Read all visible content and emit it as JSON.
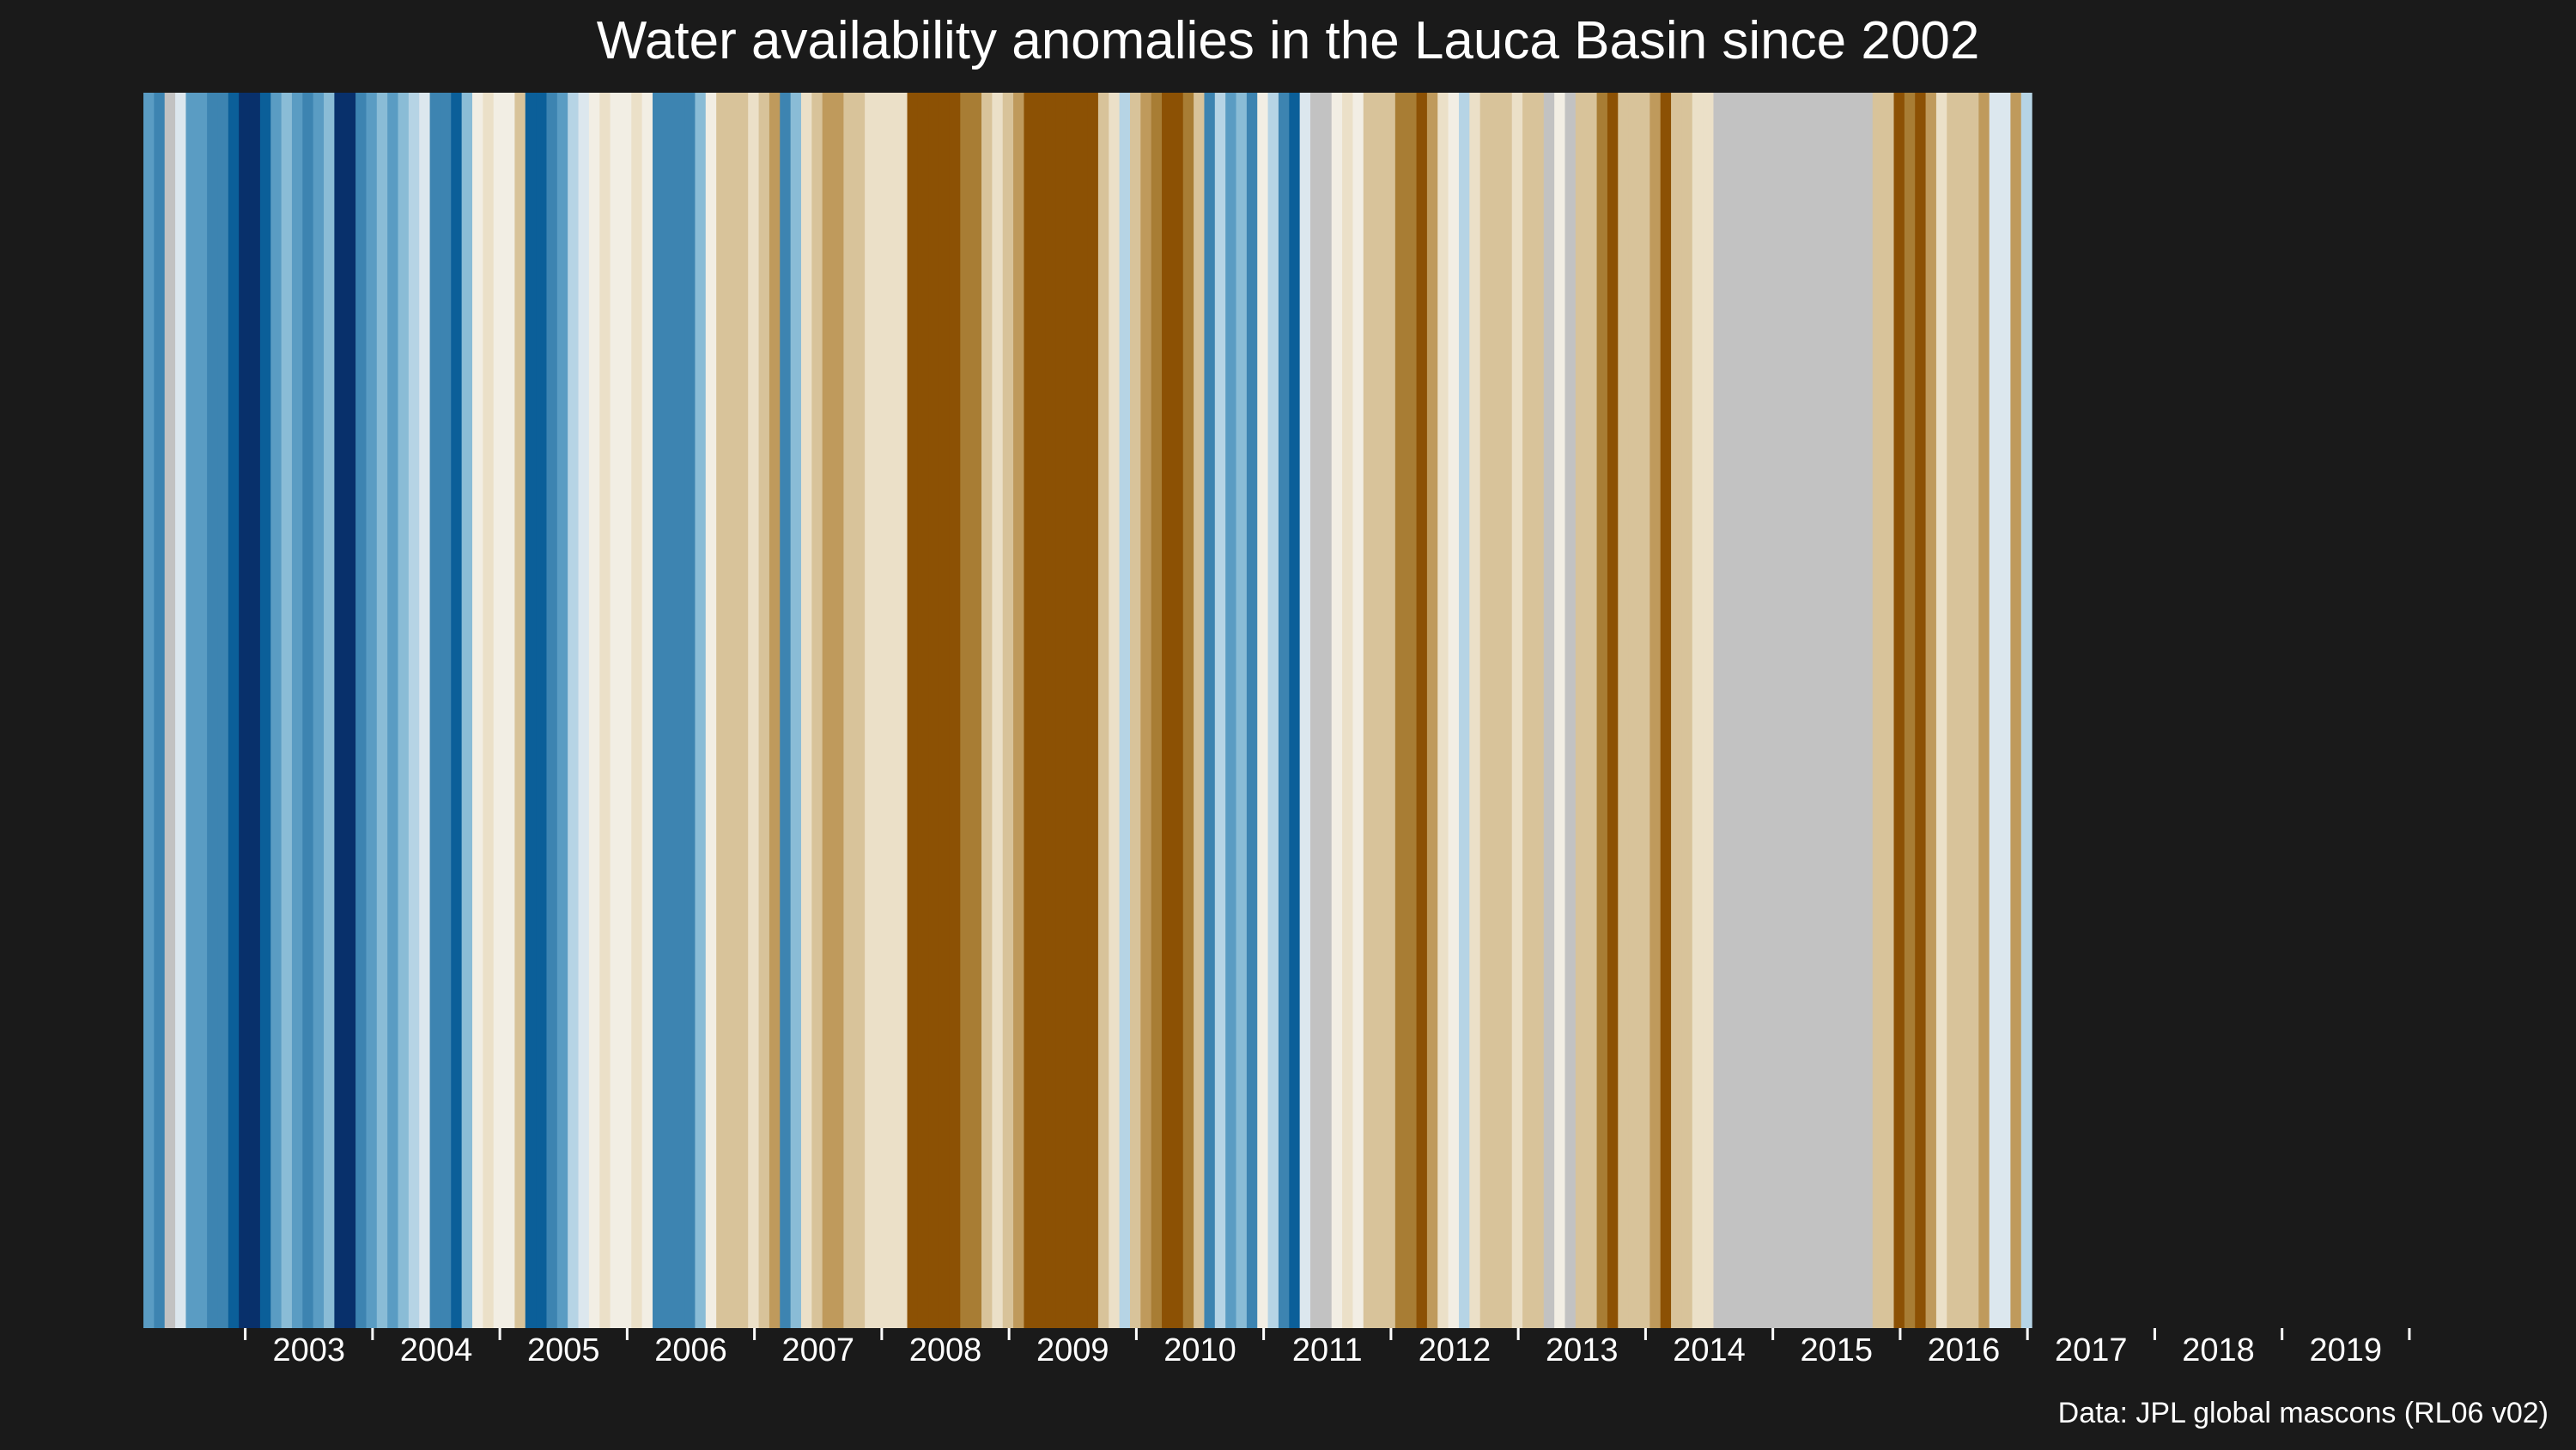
{
  "chart_data": {
    "type": "bar",
    "title": "Water availability anomalies in the Lauca Basin since 2002",
    "caption": "Data: JPL global mascons (RL06 v02)",
    "xlabel": "",
    "ylabel": "",
    "grid": false,
    "legend": "none",
    "x_range": [
      2002.2,
      2020.25
    ],
    "colors": {
      "background": "#1a1a1a",
      "text": "#ffffff",
      "missing": "#c2c2c2",
      "scale": [
        "#8c5104",
        "#a87d34",
        "#bf9a5c",
        "#d8c39a",
        "#ebe0c8",
        "#f2eee4",
        "#dce7ee",
        "#b6d4e5",
        "#8abcd6",
        "#5a9cc3",
        "#3d84b1",
        "#0b5f99",
        "#08306b"
      ]
    },
    "anomaly_scale": "diverging: -6 = driest (brown) … 0 = neutral … +6 = wettest (blue); null = no data (grey)",
    "years": [
      "2003",
      "2004",
      "2005",
      "2006",
      "2007",
      "2008",
      "2009",
      "2010",
      "2011",
      "2012",
      "2013",
      "2014",
      "2015",
      "2016",
      "2017",
      "2018",
      "2019"
    ],
    "monthly_anomaly_class": [
      3,
      4,
      null,
      0,
      3,
      3,
      4,
      4,
      5,
      6,
      6,
      5,
      3,
      2,
      3,
      4,
      3,
      2,
      6,
      6,
      4,
      3,
      2,
      3,
      2,
      1,
      0,
      4,
      4,
      5,
      2,
      -1,
      -2,
      -1,
      -1,
      -3,
      5,
      5,
      4,
      3,
      1,
      0,
      -1,
      -2,
      -1,
      -1,
      -2,
      -1,
      4,
      4,
      4,
      4,
      2,
      -1,
      -3,
      -3,
      -3,
      -2,
      -3,
      -4,
      4,
      2,
      -2,
      -3,
      -4,
      -4,
      -3,
      -3,
      -2,
      -2,
      -2,
      -2,
      -6,
      -6,
      -6,
      -6,
      -6,
      -5,
      -5,
      -3,
      -2,
      -3,
      -4,
      -6,
      -6,
      -6,
      -6,
      -6,
      -6,
      -6,
      -3,
      -2,
      1,
      -3,
      -4,
      -5,
      -6,
      -6,
      -5,
      -3,
      4,
      1,
      3,
      2,
      4,
      -1,
      1,
      4,
      5,
      0,
      null,
      null,
      -1,
      -2,
      -1,
      -3,
      -3,
      -3,
      -5,
      -5,
      -6,
      -4,
      -2,
      -1,
      1,
      -2,
      -3,
      -3,
      -3,
      -2,
      -3,
      -3,
      null,
      -1,
      null,
      -3,
      -3,
      -5,
      -6,
      -3,
      -3,
      -3,
      -4,
      -6,
      -3,
      -3,
      -2,
      -2,
      null,
      null,
      null,
      null,
      null,
      null,
      null,
      null,
      null,
      null,
      null,
      null,
      null,
      null,
      null,
      -3,
      -3,
      -6,
      -5,
      -6,
      -4,
      -2,
      -3,
      -3,
      -3,
      -4,
      0,
      0,
      -4,
      1
    ]
  }
}
